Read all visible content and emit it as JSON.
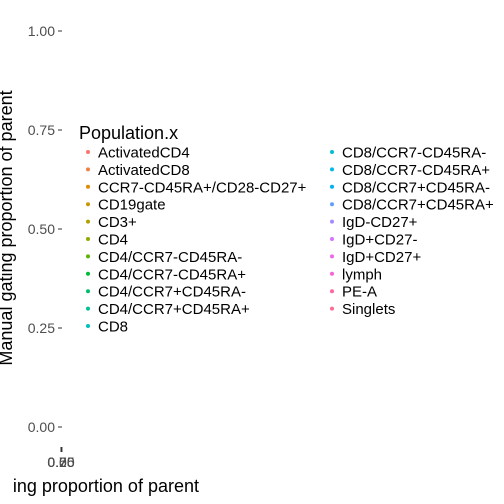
{
  "chart_data": {
    "type": "scatter",
    "xlabel": "ing proportion of parent",
    "ylabel": "Manual gating proportion of parent",
    "x_tick_labels": [
      "0.00",
      "0.25",
      "0.50",
      "0.75"
    ],
    "y_tick_labels": [
      "1.00",
      "0.75",
      "0.50",
      "0.25",
      "0.00"
    ],
    "ylim": [
      0,
      1
    ],
    "legend_placement": "overlaid",
    "grid": false,
    "legend": {
      "title": "Population.x",
      "entries": [
        {
          "label": "ActivatedCD4",
          "color": "#F8766D"
        },
        {
          "label": "ActivatedCD8",
          "color": "#EE8043"
        },
        {
          "label": "CCR7-CD45RA+/CD28-CD27+",
          "color": "#DE8C00"
        },
        {
          "label": "CD19gate",
          "color": "#C99800"
        },
        {
          "label": "CD3+",
          "color": "#AFA100"
        },
        {
          "label": "CD4",
          "color": "#8DAB00"
        },
        {
          "label": "CD4/CCR7-CD45RA-",
          "color": "#5BB300"
        },
        {
          "label": "CD4/CCR7-CD45RA+",
          "color": "#00BA38"
        },
        {
          "label": "CD4/CCR7+CD45RA-",
          "color": "#00BE70"
        },
        {
          "label": "CD4/CCR7+CD45RA+",
          "color": "#00C097"
        },
        {
          "label": "CD8",
          "color": "#00C1B8"
        },
        {
          "label": "CD8/CCR7-CD45RA-",
          "color": "#00BFD4"
        },
        {
          "label": "CD8/CCR7-CD45RA+",
          "color": "#00B9EB"
        },
        {
          "label": "CD8/CCR7+CD45RA-",
          "color": "#00B0F6"
        },
        {
          "label": "CD8/CCR7+CD45RA+",
          "color": "#619CFF"
        },
        {
          "label": "IgD-CD27+",
          "color": "#A58AFF"
        },
        {
          "label": "IgD+CD27-",
          "color": "#D474FF"
        },
        {
          "label": "IgD+CD27+",
          "color": "#F066EA"
        },
        {
          "label": "lymph",
          "color": "#FC61D5"
        },
        {
          "label": "PE-A",
          "color": "#FF67A4"
        },
        {
          "label": "Singlets",
          "color": "#FF6C90"
        }
      ]
    }
  }
}
